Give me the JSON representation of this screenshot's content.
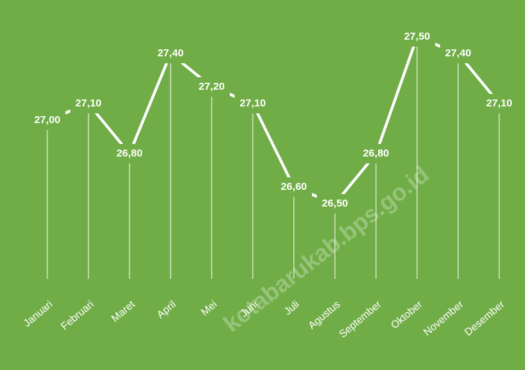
{
  "chart_data": {
    "type": "line",
    "categories": [
      "Januari",
      "Februari",
      "Maret",
      "April",
      "Mei",
      "Juni",
      "Juli",
      "Agustus",
      "September",
      "Oktober",
      "November",
      "Desember"
    ],
    "values": [
      27.0,
      27.1,
      26.8,
      27.4,
      27.2,
      27.1,
      26.6,
      26.5,
      26.8,
      27.5,
      27.4,
      27.1
    ],
    "value_labels": [
      "27,00",
      "27,10",
      "26,80",
      "27,40",
      "27,20",
      "27,10",
      "26,60",
      "26,50",
      "26,80",
      "27,50",
      "27,40",
      "27,10"
    ],
    "color": "#ffffff",
    "background": "#70ad47",
    "ylim": [
      26.05,
      27.65
    ],
    "drop_lines": true,
    "watermark": "kotabarukab.bps.go.id"
  }
}
